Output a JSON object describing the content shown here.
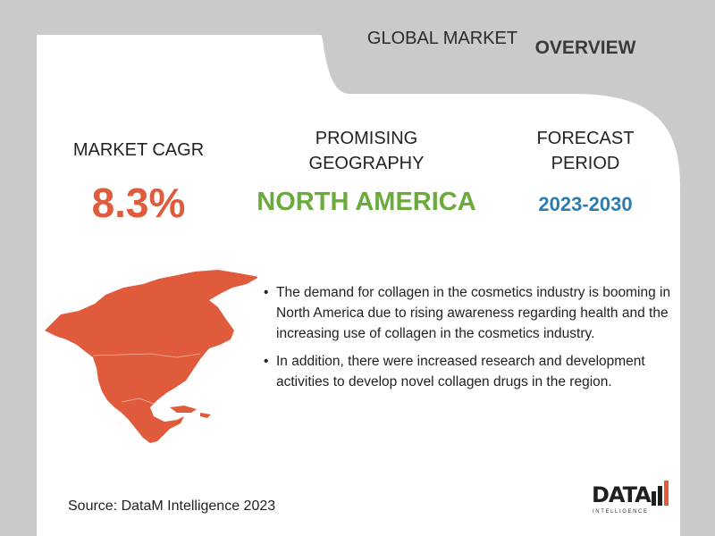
{
  "header": {
    "global_market": "GLOBAL MARKET",
    "overview": "OVERVIEW"
  },
  "stats": {
    "cagr": {
      "label": "MARKET CAGR",
      "value": "8.3%"
    },
    "geography": {
      "label": "PROMISING GEOGRAPHY",
      "value": "NORTH AMERICA"
    },
    "forecast": {
      "label": "FORECAST PERIOD",
      "value": "2023-2030"
    }
  },
  "bullets": [
    "The demand for collagen in the cosmetics industry is booming in North America due to rising awareness regarding health and the increasing use of collagen in the cosmetics industry.",
    "In addition, there were increased research and development activities to develop novel collagen drugs in the region."
  ],
  "source": "Source: DataM Intelligence 2023",
  "logo": {
    "word": "DATA",
    "sub": "INTELLIGENCE"
  },
  "map": {
    "icon": "north-america-map-icon",
    "color": "#e05a3c"
  },
  "colors": {
    "cagr": "#e05a3c",
    "geography": "#6aab3c",
    "forecast": "#2e7bb0",
    "background": "#c9cacc"
  }
}
